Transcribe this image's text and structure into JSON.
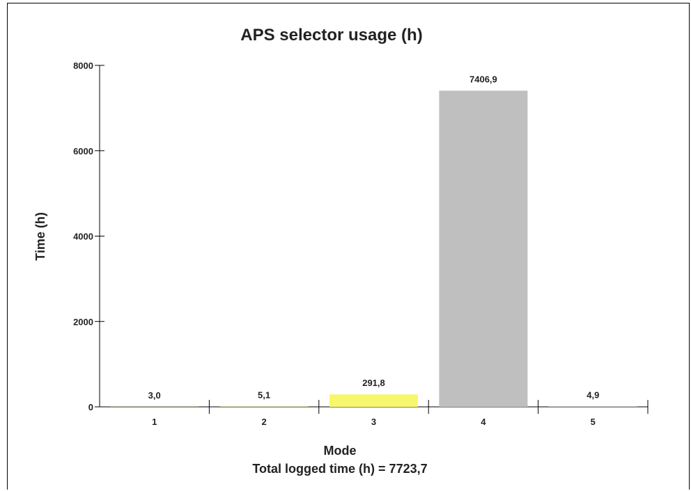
{
  "chart_data": {
    "type": "bar",
    "title": "APS selector usage (h)",
    "xlabel": "Mode",
    "ylabel": "Time (h)",
    "footer": "Total logged time (h) = 7723,7",
    "categories": [
      "1",
      "2",
      "3",
      "4",
      "5"
    ],
    "values": [
      3.0,
      5.1,
      291.8,
      7406.9,
      4.9
    ],
    "value_labels": [
      "3,0",
      "5,1",
      "291,8",
      "7406,9",
      "4,9"
    ],
    "bar_colors": [
      "#f2f26a",
      "#f2f26a",
      "#f7f76b",
      "#bfbfbf",
      "#bfbfbf"
    ],
    "ylim": [
      0,
      8000
    ],
    "yticks": [
      0,
      2000,
      4000,
      6000,
      8000
    ],
    "ytick_labels": [
      "0",
      "2000",
      "4000",
      "6000",
      "8000"
    ],
    "grid": false,
    "legend": "none"
  }
}
